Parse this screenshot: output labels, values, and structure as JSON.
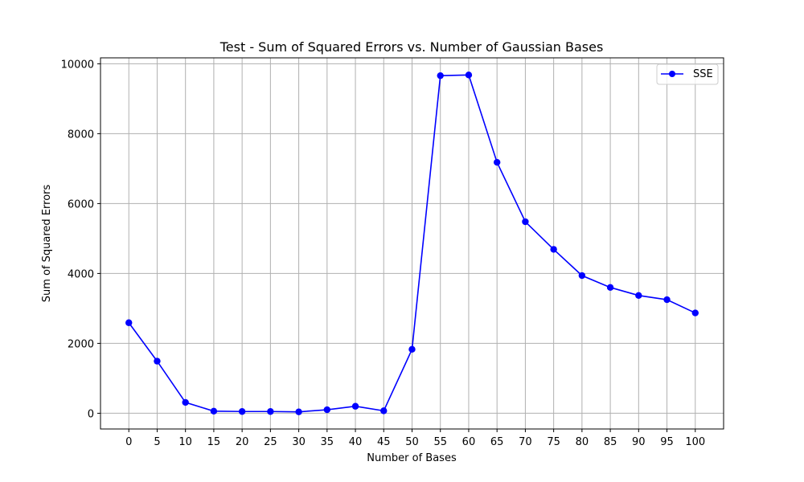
{
  "chart_data": {
    "type": "line",
    "title": "Test - Sum of Squared Errors vs. Number of Gaussian Bases",
    "xlabel": "Number of Bases",
    "ylabel": "Sum of Squared Errors",
    "x": [
      0,
      5,
      10,
      15,
      20,
      25,
      30,
      35,
      40,
      45,
      50,
      55,
      60,
      65,
      70,
      75,
      80,
      85,
      90,
      95,
      100
    ],
    "xticks": [
      0,
      5,
      10,
      15,
      20,
      25,
      30,
      35,
      40,
      45,
      50,
      55,
      60,
      65,
      70,
      75,
      80,
      85,
      90,
      95,
      100
    ],
    "yticks": [
      0,
      2000,
      4000,
      6000,
      8000,
      10000
    ],
    "xlim": [
      -5,
      105
    ],
    "ylim": [
      -450,
      10170
    ],
    "grid": true,
    "legend_position": "top-right",
    "series": [
      {
        "name": "SSE",
        "color": "#0000ff",
        "marker": "circle",
        "values": [
          2590,
          1490,
          310,
          60,
          50,
          50,
          40,
          100,
          200,
          70,
          1830,
          9660,
          9680,
          7180,
          5480,
          4690,
          3940,
          3600,
          3370,
          3250,
          2870
        ]
      }
    ]
  }
}
